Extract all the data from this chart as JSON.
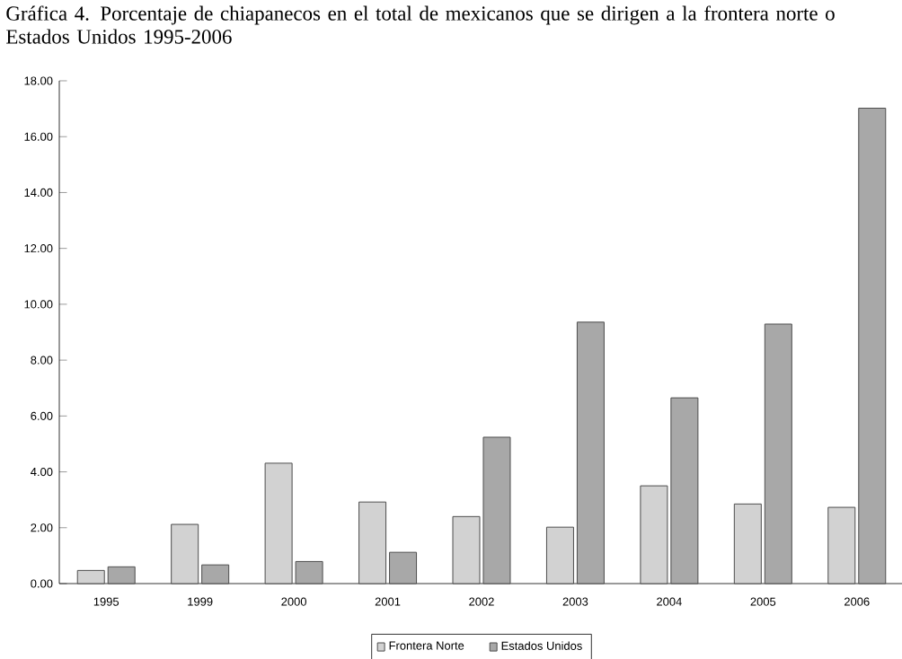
{
  "chart_data": {
    "type": "bar",
    "title": "Gráfica 4. Porcentaje de chiapanecos en el total de mexicanos que se dirigen a la frontera norte o Estados Unidos 1995-2006",
    "categories": [
      "1995",
      "1999",
      "2000",
      "2001",
      "2002",
      "2003",
      "2004",
      "2005",
      "2006"
    ],
    "series": [
      {
        "name": "Frontera Norte",
        "color": "#d2d2d2",
        "values": [
          0.47,
          2.12,
          4.31,
          2.92,
          2.4,
          2.02,
          3.5,
          2.85,
          2.73
        ]
      },
      {
        "name": "Estados Unidos",
        "color": "#a8a8a8",
        "values": [
          0.6,
          0.67,
          0.79,
          1.12,
          5.24,
          9.36,
          6.65,
          9.29,
          17.02
        ]
      }
    ],
    "ylim": [
      0,
      18
    ],
    "yticks": [
      {
        "value": 0,
        "label": "0.00"
      },
      {
        "value": 2,
        "label": "2.00"
      },
      {
        "value": 4,
        "label": "4.00"
      },
      {
        "value": 6,
        "label": "6.00"
      },
      {
        "value": 8,
        "label": "8.00"
      },
      {
        "value": 10,
        "label": "10.00"
      },
      {
        "value": 12,
        "label": "12.00"
      },
      {
        "value": 14,
        "label": "14.00"
      },
      {
        "value": 16,
        "label": "16.00"
      },
      {
        "value": 18,
        "label": "18.00"
      }
    ],
    "legend": "bottom"
  }
}
